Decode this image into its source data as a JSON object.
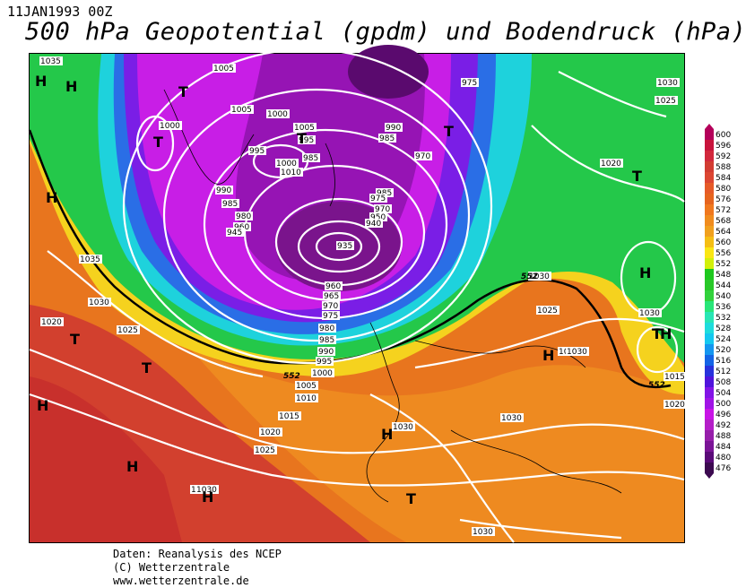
{
  "header": {
    "date": "11JAN1993 00Z",
    "title": "500 hPa Geopotential (gpdm) und Bodendruck (hPa)"
  },
  "footer": {
    "line1": "Daten: Reanalysis des NCEP",
    "line2": "(C) Wetterzentrale",
    "line3": "www.wetterzentrale.de"
  },
  "legend": {
    "values": [
      "600",
      "596",
      "592",
      "588",
      "584",
      "580",
      "576",
      "572",
      "568",
      "564",
      "560",
      "556",
      "552",
      "548",
      "544",
      "540",
      "536",
      "532",
      "528",
      "524",
      "520",
      "516",
      "512",
      "508",
      "504",
      "500",
      "496",
      "492",
      "488",
      "484",
      "480",
      "476"
    ],
    "colors": [
      "#b4005a",
      "#c8143c",
      "#d2283c",
      "#d23c32",
      "#dc4632",
      "#e65a28",
      "#e6641e",
      "#f0781e",
      "#f08c1e",
      "#f0a01e",
      "#f5be14",
      "#fae614",
      "#d2f00a",
      "#1ec81e",
      "#28c828",
      "#32d23c",
      "#28e678",
      "#28e6b4",
      "#1edcdc",
      "#14c8f0",
      "#1496f0",
      "#1464e6",
      "#2832dc",
      "#5014dc",
      "#8214e6",
      "#a014e6",
      "#c814e6",
      "#b41ec8",
      "#961eaa",
      "#7a1496",
      "#5a0a78",
      "#3c0a50"
    ]
  },
  "map": {
    "marker_512": "552",
    "pressure_labels": [
      "1035",
      "1005",
      "975",
      "1030",
      "1025",
      "1005",
      "1000",
      "1000",
      "1005",
      "995",
      "985",
      "990",
      "985",
      "970",
      "995",
      "1000",
      "1010",
      "1020",
      "990",
      "985",
      "985",
      "980",
      "960",
      "975",
      "950",
      "970",
      "945",
      "940",
      "935",
      "1035",
      "960",
      "965",
      "970",
      "975",
      "980",
      "985",
      "990",
      "995",
      "1000",
      "1005",
      "1010",
      "1015",
      "1020",
      "1025",
      "1030",
      "1020",
      "1025",
      "1030",
      "1030",
      "1025",
      "1030",
      "1030",
      "1015",
      "1030",
      "1030",
      "1020",
      "1030",
      "1030",
      "1030"
    ],
    "systems": [
      "H",
      "T",
      "T",
      "T",
      "T",
      "H",
      "H",
      "T",
      "T",
      "H",
      "T",
      "H",
      "H",
      "H",
      "H",
      "T",
      "H",
      "T",
      "H"
    ],
    "contour_552_labels": [
      "552",
      "552",
      "552"
    ]
  }
}
